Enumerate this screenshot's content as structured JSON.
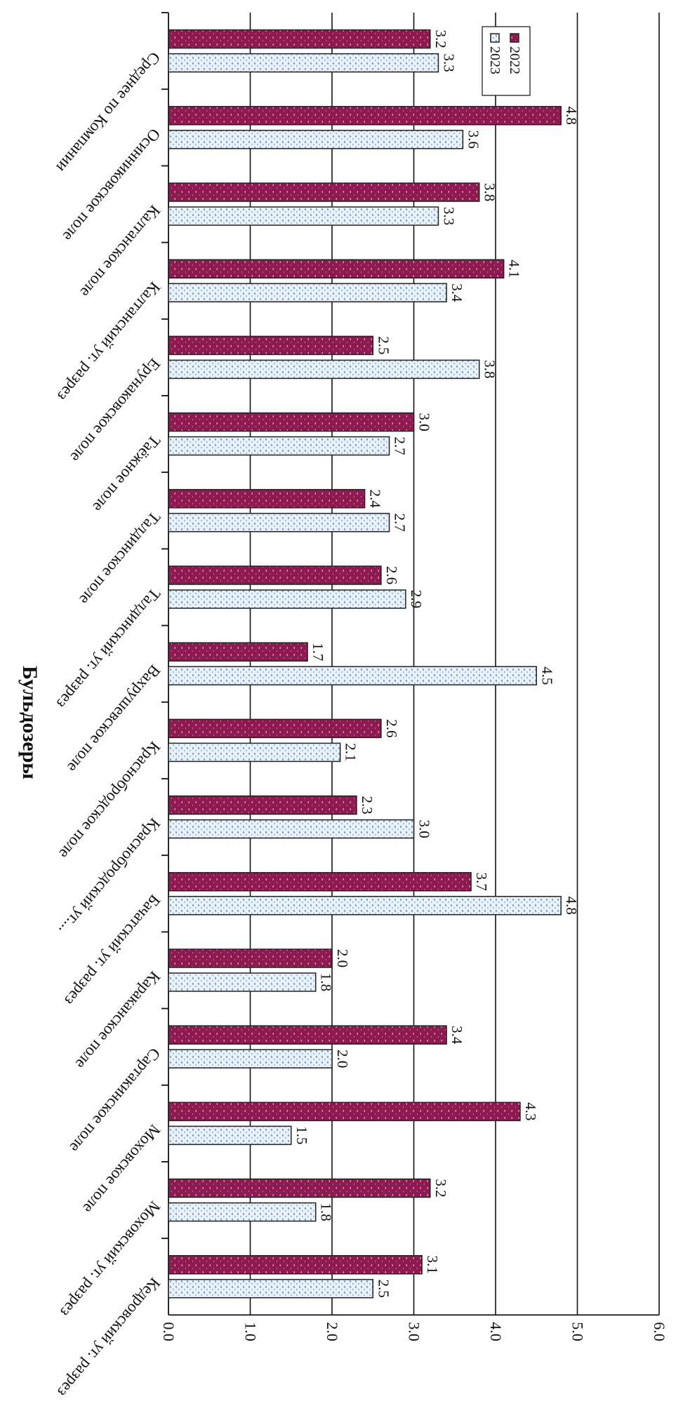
{
  "chart_data": {
    "type": "bar",
    "orientation": "horizontal",
    "title": "Бульдозеры",
    "xlabel": "",
    "ylabel": "",
    "xlim": [
      0,
      6
    ],
    "ticks": [
      "0.0",
      "1.0",
      "2.0",
      "3.0",
      "4.0",
      "5.0",
      "6.0"
    ],
    "grid": true,
    "legend_position": "top-right",
    "categories": [
      "Кедровский уг. разрез",
      "Моховский уг. разрез",
      "Моховское поле",
      "Сартакинское поле",
      "Караканское поле",
      "Бачатский уг. разрез",
      "Краснобродский уг....",
      "Краснобродское поле",
      "Вахрушевское поле",
      "Талдинский уг. разрез",
      "Талдинское поле",
      "Таёжное поле",
      "Ерунаковское поле",
      "Калтанский уг. разрез",
      "Калтанское поле",
      "Осинниковское поле",
      "Среднее по Компании"
    ],
    "series": [
      {
        "name": "2023",
        "color": "#cfe0f2",
        "values": [
          2.5,
          1.8,
          1.5,
          2.0,
          1.8,
          4.8,
          3.0,
          2.1,
          4.5,
          2.9,
          2.7,
          2.7,
          3.8,
          3.4,
          3.3,
          3.6,
          3.3
        ],
        "labels": [
          "2.5",
          "1.8",
          "1.5",
          "2.0",
          "1.8",
          "4.8",
          "3.0",
          "2.1",
          "4.5",
          "2.9",
          "2.7",
          "2.7",
          "3.8",
          "3.4",
          "3.3",
          "3.6",
          "3.3"
        ]
      },
      {
        "name": "2022",
        "color": "#8e1a52",
        "values": [
          3.1,
          3.2,
          4.3,
          3.4,
          2.0,
          3.7,
          2.3,
          2.6,
          1.7,
          2.6,
          2.4,
          3.0,
          2.5,
          4.1,
          3.8,
          4.8,
          3.2
        ],
        "labels": [
          "3.1",
          "3.2",
          "4.3",
          "3.4",
          "2.0",
          "3.7",
          "2.3",
          "2.6",
          "1.7",
          "2.6",
          "2.4",
          "3.0",
          "2.5",
          "4.1",
          "3.8",
          "4.8",
          "3.2"
        ]
      }
    ]
  }
}
